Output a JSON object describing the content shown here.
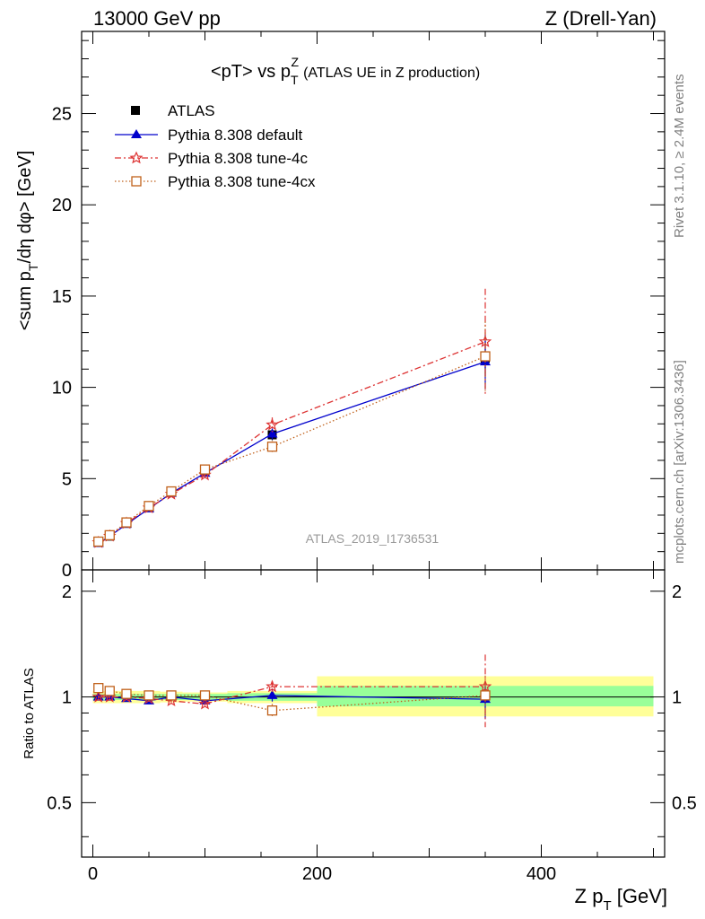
{
  "header": {
    "left": "13000 GeV pp",
    "right": "Z (Drell-Yan)"
  },
  "title": {
    "main": "<pT> vs p",
    "sub_T": "T",
    "sup_Z": "Z",
    "extra": "(ATLAS UE in Z production)"
  },
  "side_labels": {
    "rivet": "Rivet 3.1.10, ≥ 2.4M events",
    "mcplots": "mcplots.cern.ch [arXiv:1306.3436]"
  },
  "analysis_id": "ATLAS_2019_I1736531",
  "colors": {
    "atlas": "#000000",
    "default": "#0000cc",
    "tune4c": "#dd3333",
    "tune4cx": "#c0601a",
    "band_inner": "#99ff99",
    "band_outer": "#ffff99"
  },
  "chart_data": [
    {
      "type": "line",
      "panel": "main",
      "ylabel": {
        "a": "<sum p",
        "b": "T",
        "c": "/dη dφ> [GeV]"
      },
      "ylim": [
        0,
        29.5
      ],
      "yticks": [
        0,
        5,
        10,
        15,
        20,
        25
      ],
      "ytick_labels": [
        "0",
        "5",
        "10",
        "15",
        "20",
        "25"
      ],
      "xlim": [
        -10,
        510
      ],
      "legend_position": "top-left",
      "x": [
        5,
        15,
        30,
        50,
        70,
        100,
        160,
        350
      ],
      "series": [
        {
          "name": "ATLAS",
          "key": "atlas",
          "values": [
            1.5,
            1.85,
            2.55,
            3.45,
            4.25,
            5.45,
            7.4,
            11.6
          ],
          "err": [
            0.05,
            0.05,
            0.06,
            0.08,
            0.1,
            0.12,
            0.3,
            1.0
          ]
        },
        {
          "name": "Pythia 8.308 default",
          "key": "default",
          "values": [
            1.45,
            1.85,
            2.5,
            3.35,
            4.2,
            5.3,
            7.45,
            11.4
          ],
          "err": [
            0.02,
            0.02,
            0.03,
            0.05,
            0.06,
            0.1,
            0.3,
            1.5
          ]
        },
        {
          "name": "Pythia 8.308 tune-4c",
          "key": "tune4c",
          "values": [
            1.5,
            1.85,
            2.55,
            3.4,
            4.15,
            5.2,
            7.95,
            12.5
          ],
          "err": [
            0.02,
            0.02,
            0.03,
            0.05,
            0.06,
            0.1,
            0.4,
            2.9
          ]
        },
        {
          "name": "Pythia 8.308 tune-4cx",
          "key": "tune4cx",
          "values": [
            1.55,
            1.9,
            2.6,
            3.5,
            4.3,
            5.5,
            6.75,
            11.7
          ],
          "err": [
            0.02,
            0.02,
            0.03,
            0.05,
            0.06,
            0.1,
            0.3,
            1.9
          ]
        }
      ]
    },
    {
      "type": "line",
      "panel": "ratio",
      "ylabel": "Ratio to ATLAS",
      "ylim": [
        0.35,
        2.3
      ],
      "yscale": "log",
      "yticks": [
        0.5,
        1,
        2
      ],
      "ytick_labels": [
        "0.5",
        "1",
        "2"
      ],
      "xlabel": {
        "a": "Z p",
        "b": "T",
        "c": " [GeV]"
      },
      "xlim": [
        -10,
        510
      ],
      "xticks": [
        0,
        200,
        400
      ],
      "xtick_labels": [
        "0",
        "200",
        "400"
      ],
      "bands": [
        {
          "x0": 0,
          "x1": 10,
          "inner": [
            0.98,
            1.02
          ],
          "outer": [
            0.96,
            1.04
          ]
        },
        {
          "x0": 10,
          "x1": 20,
          "inner": [
            0.98,
            1.02
          ],
          "outer": [
            0.96,
            1.04
          ]
        },
        {
          "x0": 20,
          "x1": 40,
          "inner": [
            0.98,
            1.02
          ],
          "outer": [
            0.96,
            1.04
          ]
        },
        {
          "x0": 40,
          "x1": 60,
          "inner": [
            0.98,
            1.02
          ],
          "outer": [
            0.96,
            1.04
          ]
        },
        {
          "x0": 60,
          "x1": 80,
          "inner": [
            0.98,
            1.02
          ],
          "outer": [
            0.965,
            1.035
          ]
        },
        {
          "x0": 80,
          "x1": 120,
          "inner": [
            0.98,
            1.02
          ],
          "outer": [
            0.97,
            1.03
          ]
        },
        {
          "x0": 120,
          "x1": 200,
          "inner": [
            0.975,
            1.025
          ],
          "outer": [
            0.96,
            1.04
          ]
        },
        {
          "x0": 200,
          "x1": 500,
          "inner": [
            0.94,
            1.075
          ],
          "outer": [
            0.88,
            1.145
          ]
        }
      ],
      "x": [
        5,
        15,
        30,
        50,
        70,
        100,
        160,
        350
      ],
      "series": [
        {
          "name": "Pythia 8.308 default",
          "key": "default",
          "values": [
            1.0,
            1.0,
            0.99,
            0.975,
            1.0,
            0.975,
            1.01,
            0.985
          ],
          "err": [
            0.01,
            0.01,
            0.01,
            0.01,
            0.01,
            0.01,
            0.04,
            0.12
          ]
        },
        {
          "name": "Pythia 8.308 tune-4c",
          "key": "tune4c",
          "values": [
            1.0,
            1.0,
            1.0,
            0.99,
            0.975,
            0.955,
            1.07,
            1.07
          ],
          "err": [
            0.01,
            0.01,
            0.01,
            0.01,
            0.01,
            0.01,
            0.04,
            0.25
          ]
        },
        {
          "name": "Pythia 8.308 tune-4cx",
          "key": "tune4cx",
          "values": [
            1.06,
            1.04,
            1.02,
            1.01,
            1.01,
            1.01,
            0.915,
            1.01
          ],
          "err": [
            0.01,
            0.01,
            0.01,
            0.01,
            0.01,
            0.01,
            0.04,
            0.14
          ]
        }
      ]
    }
  ]
}
